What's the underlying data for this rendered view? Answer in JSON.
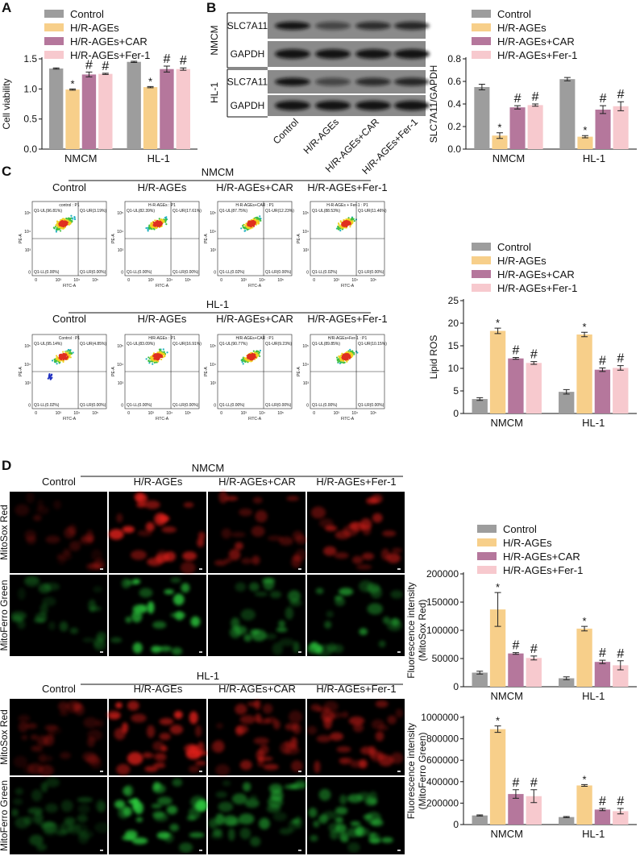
{
  "panel_labels": [
    "A",
    "B",
    "C",
    "D"
  ],
  "chart_data": [
    {
      "type": "bar",
      "y_label": "Cell viability",
      "categories": [
        "NMCM",
        "HL-1"
      ],
      "ylim": [
        0,
        1.5
      ],
      "yticks": [
        {
          "value": 0,
          "label": "0.0"
        },
        0.5,
        {
          "value": 1,
          "label": "1.0"
        },
        1.5
      ],
      "legend": "above",
      "series": [
        {
          "name": "Control",
          "color": "#9d9d9d",
          "values": [
            1.34,
            1.45
          ],
          "errors": [
            0.01,
            0.01
          ]
        },
        {
          "name": "H/R-AGEs",
          "color": "#f7cf8a",
          "values": [
            0.99,
            1.03
          ],
          "errors": [
            0.01,
            0.01
          ],
          "markers": [
            "*",
            "*"
          ]
        },
        {
          "name": "H/R-AGEs+CAR",
          "color": "#b5779c",
          "values": [
            1.24,
            1.33
          ],
          "errors": [
            0.04,
            0.05
          ],
          "markers": [
            "#",
            "#"
          ]
        },
        {
          "name": "H/R-AGEs+Fer-1",
          "color": "#f7c9ce",
          "values": [
            1.25,
            1.33
          ],
          "errors": [
            0.01,
            0.02
          ],
          "markers": [
            "#",
            "#"
          ]
        }
      ]
    },
    {
      "type": "bar",
      "y_label": "SLC7A11/GAPDH",
      "categories": [
        "NMCM",
        "HL-1"
      ],
      "ylim": [
        0,
        0.8
      ],
      "yticks": [
        {
          "value": 0,
          "label": "0.0"
        },
        0.2,
        0.4,
        0.6,
        0.8
      ],
      "legend": "above",
      "series": [
        {
          "name": "Control",
          "color": "#9d9d9d",
          "values": [
            0.55,
            0.62
          ],
          "errors": [
            0.025,
            0.015
          ]
        },
        {
          "name": "H/R-AGEs",
          "color": "#f7cf8a",
          "values": [
            0.12,
            0.11
          ],
          "errors": [
            0.025,
            0.01
          ],
          "markers": [
            "*",
            "*"
          ]
        },
        {
          "name": "H/R-AGEs+CAR",
          "color": "#b5779c",
          "values": [
            0.37,
            0.35
          ],
          "errors": [
            0.015,
            0.035
          ],
          "markers": [
            "#",
            "#"
          ]
        },
        {
          "name": "H/R-AGEs+Fer-1",
          "color": "#f7c9ce",
          "values": [
            0.39,
            0.38
          ],
          "errors": [
            0.01,
            0.04
          ],
          "markers": [
            "#",
            "#"
          ]
        }
      ]
    },
    {
      "type": "bar",
      "y_label": "Lipid ROS",
      "categories": [
        "NMCM",
        "HL-1"
      ],
      "ylim": [
        0,
        25
      ],
      "yticks": [
        0,
        5,
        10,
        15,
        20,
        25
      ],
      "legend": "above",
      "series": [
        {
          "name": "Control",
          "color": "#9d9d9d",
          "values": [
            3.2,
            4.8
          ],
          "errors": [
            0.3,
            0.5
          ]
        },
        {
          "name": "H/R-AGEs",
          "color": "#f7cf8a",
          "values": [
            18.3,
            17.5
          ],
          "errors": [
            0.6,
            0.5
          ],
          "markers": [
            "*",
            "*"
          ]
        },
        {
          "name": "H/R-AGEs+CAR",
          "color": "#b5779c",
          "values": [
            12.2,
            9.7
          ],
          "errors": [
            0.2,
            0.4
          ],
          "markers": [
            "#",
            "#"
          ]
        },
        {
          "name": "H/R-AGEs+Fer-1",
          "color": "#f7c9ce",
          "values": [
            11.2,
            10.1
          ],
          "errors": [
            0.3,
            0.5
          ],
          "markers": [
            "#",
            "#"
          ]
        }
      ]
    },
    {
      "type": "bar",
      "y_label": [
        "Fluorescence intensity",
        "(MitoSox Red)"
      ],
      "categories": [
        "NMCM",
        "HL-1"
      ],
      "ylim": [
        0,
        200000
      ],
      "yticks": [
        0,
        50000,
        100000,
        150000,
        200000
      ],
      "legend": "above",
      "series": [
        {
          "name": "Control",
          "color": "#9d9d9d",
          "values": [
            25000,
            15000
          ],
          "errors": [
            2500,
            2500
          ]
        },
        {
          "name": "H/R-AGEs",
          "color": "#f7cf8a",
          "values": [
            137000,
            103000
          ],
          "errors": [
            30000,
            4000
          ],
          "markers": [
            "*",
            "*"
          ]
        },
        {
          "name": "H/R-AGEs+CAR",
          "color": "#b5779c",
          "values": [
            59000,
            44000
          ],
          "errors": [
            1500,
            3000
          ],
          "markers": [
            "#",
            "#"
          ]
        },
        {
          "name": "H/R-AGEs+Fer-1",
          "color": "#f7c9ce",
          "values": [
            51000,
            38000
          ],
          "errors": [
            3500,
            8000
          ],
          "markers": [
            "#",
            "#"
          ]
        }
      ]
    },
    {
      "type": "bar",
      "y_label": [
        "Fluorescence intensity",
        "(MitoFerro Green)"
      ],
      "categories": [
        "NMCM",
        "HL-1"
      ],
      "ylim": [
        0,
        1000000
      ],
      "yticks": [
        0,
        200000,
        400000,
        600000,
        800000,
        1000000
      ],
      "series": [
        {
          "name": "Control",
          "color": "#9d9d9d",
          "values": [
            85000,
            70000
          ],
          "errors": [
            5000,
            5000
          ]
        },
        {
          "name": "H/R-AGEs",
          "color": "#f7cf8a",
          "values": [
            890000,
            365000
          ],
          "errors": [
            30000,
            8000
          ],
          "markers": [
            "*",
            "*"
          ]
        },
        {
          "name": "H/R-AGEs+CAR",
          "color": "#b5779c",
          "values": [
            285000,
            140000
          ],
          "errors": [
            40000,
            10000
          ],
          "markers": [
            "#",
            "#"
          ]
        },
        {
          "name": "H/R-AGEs+Fer-1",
          "color": "#f7c9ce",
          "values": [
            265000,
            125000
          ],
          "errors": [
            60000,
            25000
          ],
          "markers": [
            "#",
            "#"
          ]
        }
      ]
    }
  ],
  "blot": {
    "groups": [
      "NMCM",
      "HL-1"
    ],
    "rows": [
      "SLC7A11",
      "GAPDH",
      "SLC7A11",
      "GAPDH"
    ],
    "lanes": [
      "Control",
      "H/R-AGEs",
      "H/R-AGEs+CAR",
      "H/R-AGEs+Fer-1"
    ]
  },
  "flow": {
    "x_label": "FITC-A",
    "y_label": "PE-A",
    "x_ticks": [
      "0",
      "10³",
      "10⁴",
      "10⁵"
    ],
    "y_ticks": [
      "0",
      "10³",
      "10⁴",
      "10⁵"
    ],
    "groups": [
      {
        "title": "NMCM",
        "columns": [
          "Control",
          "H/R-AGEs",
          "H/R-AGEs+CAR",
          "H/R-AGEs+Fer-1"
        ],
        "plots": [
          {
            "header": "control : P1",
            "quadrants": [
              "Q1-UL(96.81%)",
              "Q1-UR(3.19%)",
              "Q1-LL(0.00%)",
              "Q1-LR(0.00%)"
            ]
          },
          {
            "header": "H-R-AGEs : P1",
            "quadrants": [
              "Q1-UL(82.39%)",
              "Q1-UR(17.61%)",
              "Q1-LL(0.00%)",
              "Q1-LR(0.00%)"
            ]
          },
          {
            "header": "H-R-AGEs+CAR : P1",
            "quadrants": [
              "Q1-UL(87.75%)",
              "Q1-UR(12.23%)",
              "Q1-LL(0.02%)",
              "Q1-LR(0.00%)"
            ]
          },
          {
            "header": "H-R-AGEs + Fer-1 : P1",
            "quadrants": [
              "Q1-UL(88.53%)",
              "Q1-UR(11.46%)",
              "Q1-LL(0.02%)",
              "Q1-LR(0.00%)"
            ]
          }
        ]
      },
      {
        "title": "HL-1",
        "columns": [
          "Control",
          "H/R-AGEs",
          "H/R-AGEs+CAR",
          "H/R-AGEs+Fer-1"
        ],
        "plots": [
          {
            "header": "Control : P1",
            "quadrants": [
              "Q1-UL(95.14%)",
              "Q1-UR(4.85%)",
              "Q1-LL(0.02%)",
              "Q1-LR(0.00%)"
            ]
          },
          {
            "header": "H/R-AGEs : P1",
            "quadrants": [
              "Q1-UL(83.09%)",
              "Q1-UR(16.91%)",
              "Q1-LL(0.00%)",
              "Q1-LR(0.00%)"
            ]
          },
          {
            "header": "H/R-AGEs+CAR : P1",
            "quadrants": [
              "Q1-UL(90.77%)",
              "Q1-UR(9.23%)",
              "Q1-LL(0.00%)",
              "Q1-LR(0.00%)"
            ]
          },
          {
            "header": "H/R-AGEs+Fer-1 : P1",
            "quadrants": [
              "Q1-UL(89.85%)",
              "Q1-UR(10.15%)",
              "Q1-LL(0.00%)",
              "Q1-LR(0.00%)"
            ]
          }
        ]
      }
    ]
  },
  "images": {
    "groups": [
      {
        "title": "NMCM",
        "columns": [
          "Control",
          "H/R-AGEs",
          "H/R-AGEs+CAR",
          "H/R-AGEs+Fer-1"
        ],
        "rows": [
          "MitoSox Red",
          "MitoFerro Green"
        ]
      },
      {
        "title": "HL-1",
        "columns": [
          "Control",
          "H/R-AGEs",
          "H/R-AGEs+CAR",
          "H/R-AGEs+Fer-1"
        ],
        "rows": [
          "MitoSox Red",
          "MitoFerro Green"
        ]
      }
    ]
  }
}
